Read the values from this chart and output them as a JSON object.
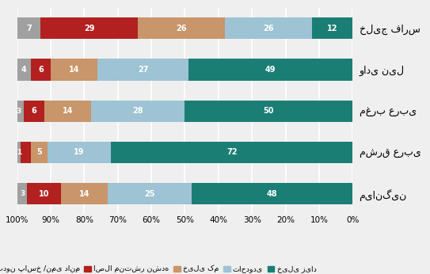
{
  "categories": [
    "میانگین",
    "مشرق عربی",
    "مغرب عربی",
    "وادی نیل",
    "خلیج فارس"
  ],
  "segments": [
    {
      "label": "خیلی زیاد",
      "color": "#1B7E74",
      "values": [
        48,
        72,
        50,
        49,
        12
      ]
    },
    {
      "label": "تاحدودی",
      "color": "#9DC3D4",
      "values": [
        25,
        19,
        28,
        27,
        26
      ]
    },
    {
      "label": "خیلی کم",
      "color": "#C9956A",
      "values": [
        14,
        5,
        14,
        14,
        26
      ]
    },
    {
      "label": "اصلا منتشر نشده",
      "color": "#B22020",
      "values": [
        10,
        3,
        6,
        6,
        29
      ]
    },
    {
      "label": "بدون پاسخ /نمی دانم",
      "color": "#A0A0A0",
      "values": [
        3,
        1,
        3,
        4,
        7
      ]
    }
  ],
  "bg_color": "#EFEFEF",
  "grid_color": "#FFFFFF",
  "xlim": [
    0,
    100
  ],
  "xticks": [
    0,
    10,
    20,
    30,
    40,
    50,
    60,
    70,
    80,
    90,
    100
  ],
  "bar_height": 0.52
}
